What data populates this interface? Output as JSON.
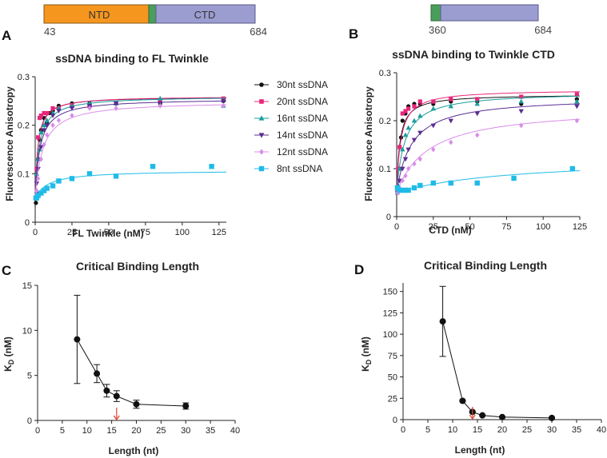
{
  "panel_labels": {
    "A": "A",
    "B": "B",
    "C": "C",
    "D": "D"
  },
  "domain_bars": {
    "left": {
      "ntd_label": "NTD",
      "ctd_label": "CTD",
      "start": "43",
      "end": "684"
    },
    "right": {
      "start": "360",
      "end": "684"
    }
  },
  "colors": {
    "ntd": "#f5961f",
    "linker": "#4a9e5c",
    "ctd": "#9b9cd0",
    "series": {
      "30nt ssDNA": "#111111",
      "20nt ssDNA": "#e8267a",
      "16nt ssDNA": "#1a9c9c",
      "14nt ssDNA": "#5a2d91",
      "12nt ssDNA": "#d98ce8",
      "8nt ssDNA": "#1fbbe8"
    },
    "arrow": "#e0442f"
  },
  "chart_data": [
    {
      "id": "A",
      "type": "scatter",
      "title": "ssDNA binding to FL Twinkle",
      "xlabel": "FL Twinkle (nM)",
      "ylabel": "Fluorescence Anisotropy",
      "xlim": [
        0,
        130
      ],
      "ylim": [
        0,
        0.3
      ],
      "xticks": [
        0,
        25,
        50,
        75,
        100,
        125
      ],
      "yticks": [
        0,
        0.1,
        0.2,
        0.3
      ],
      "ytick_labels": [
        "0",
        "0.1",
        "0.2",
        "0.3"
      ],
      "legend": "top-right",
      "series": [
        {
          "name": "30nt ssDNA",
          "marker": "circle",
          "base": 0.03,
          "bmax": 0.229,
          "kd": 1.6,
          "points": [
            [
              0.5,
              0.04
            ],
            [
              1,
              0.06
            ],
            [
              2,
              0.13
            ],
            [
              3,
              0.17
            ],
            [
              4,
              0.19
            ],
            [
              6,
              0.215
            ],
            [
              8,
              0.205
            ],
            [
              10,
              0.225
            ],
            [
              12,
              0.23
            ],
            [
              16,
              0.24
            ],
            [
              25,
              0.245
            ],
            [
              37,
              0.245
            ],
            [
              55,
              0.245
            ],
            [
              85,
              0.245
            ],
            [
              128,
              0.25
            ]
          ]
        },
        {
          "name": "20nt ssDNA",
          "marker": "square",
          "base": 0.05,
          "bmax": 0.21,
          "kd": 1.9,
          "points": [
            [
              0.5,
              0.05
            ],
            [
              1,
              0.11
            ],
            [
              2,
              0.175
            ],
            [
              3,
              0.215
            ],
            [
              4,
              0.22
            ],
            [
              6,
              0.225
            ],
            [
              8,
              0.225
            ],
            [
              12,
              0.235
            ],
            [
              16,
              0.235
            ],
            [
              25,
              0.24
            ],
            [
              37,
              0.24
            ],
            [
              55,
              0.245
            ],
            [
              85,
              0.25
            ],
            [
              128,
              0.255
            ]
          ]
        },
        {
          "name": "16nt ssDNA",
          "marker": "triangle-up",
          "base": 0.05,
          "bmax": 0.21,
          "kd": 2.8,
          "points": [
            [
              0.5,
              0.05
            ],
            [
              1,
              0.1
            ],
            [
              2,
              0.13
            ],
            [
              3,
              0.15
            ],
            [
              4,
              0.185
            ],
            [
              6,
              0.2
            ],
            [
              8,
              0.21
            ],
            [
              12,
              0.225
            ],
            [
              16,
              0.235
            ],
            [
              25,
              0.24
            ],
            [
              37,
              0.245
            ],
            [
              55,
              0.245
            ],
            [
              85,
              0.255
            ],
            [
              128,
              0.24
            ]
          ]
        },
        {
          "name": "14nt ssDNA",
          "marker": "triangle-down",
          "base": 0.05,
          "bmax": 0.205,
          "kd": 3.3,
          "points": [
            [
              0.5,
              0.05
            ],
            [
              1,
              0.08
            ],
            [
              2,
              0.11
            ],
            [
              4,
              0.155
            ],
            [
              6,
              0.19
            ],
            [
              8,
              0.2
            ],
            [
              12,
              0.22
            ],
            [
              16,
              0.23
            ],
            [
              25,
              0.235
            ],
            [
              37,
              0.24
            ],
            [
              55,
              0.245
            ],
            [
              85,
              0.245
            ],
            [
              128,
              0.25
            ]
          ]
        },
        {
          "name": "12nt ssDNA",
          "marker": "diamond",
          "base": 0.05,
          "bmax": 0.2,
          "kd": 5.2,
          "points": [
            [
              0.5,
              0.05
            ],
            [
              1,
              0.065
            ],
            [
              2,
              0.09
            ],
            [
              4,
              0.13
            ],
            [
              6,
              0.16
            ],
            [
              8,
              0.18
            ],
            [
              12,
              0.2
            ],
            [
              16,
              0.21
            ],
            [
              25,
              0.22
            ],
            [
              37,
              0.235
            ],
            [
              55,
              0.235
            ],
            [
              85,
              0.24
            ],
            [
              128,
              0.24
            ]
          ]
        },
        {
          "name": "8nt ssDNA",
          "marker": "square",
          "base": 0.05,
          "bmax": 0.057,
          "kd": 9,
          "points": [
            [
              0.5,
              0.05
            ],
            [
              1,
              0.05
            ],
            [
              2,
              0.055
            ],
            [
              4,
              0.06
            ],
            [
              6,
              0.065
            ],
            [
              8,
              0.07
            ],
            [
              12,
              0.075
            ],
            [
              16,
              0.085
            ],
            [
              25,
              0.09
            ],
            [
              37,
              0.1
            ],
            [
              55,
              0.095
            ],
            [
              80,
              0.115
            ],
            [
              120,
              0.115
            ]
          ]
        }
      ]
    },
    {
      "id": "B",
      "type": "scatter",
      "title": "ssDNA binding to Twinkle CTD",
      "xlabel": "CTD (nM)",
      "ylabel": "Fluorescence Anisotropy",
      "xlim": [
        0,
        125
      ],
      "ylim": [
        0,
        0.3
      ],
      "xticks": [
        0,
        25,
        50,
        75,
        100,
        125
      ],
      "yticks": [
        0,
        0.1,
        0.2,
        0.3
      ],
      "ytick_labels": [
        "0",
        "0.1",
        "0.2",
        "0.3"
      ],
      "series": [
        {
          "name": "30nt ssDNA",
          "marker": "circle",
          "base": 0.05,
          "bmax": 0.205,
          "kd": 2.2,
          "points": [
            [
              0.5,
              0.05
            ],
            [
              1,
              0.06
            ],
            [
              2,
              0.1
            ],
            [
              3,
              0.165
            ],
            [
              4,
              0.2
            ],
            [
              6,
              0.215
            ],
            [
              8,
              0.23
            ],
            [
              12,
              0.235
            ],
            [
              16,
              0.235
            ],
            [
              25,
              0.235
            ],
            [
              37,
              0.24
            ],
            [
              55,
              0.24
            ],
            [
              85,
              0.235
            ],
            [
              123,
              0.245
            ]
          ]
        },
        {
          "name": "20nt ssDNA",
          "marker": "square",
          "base": 0.05,
          "bmax": 0.215,
          "kd": 2.8,
          "points": [
            [
              0.5,
              0.06
            ],
            [
              1,
              0.1
            ],
            [
              2,
              0.145
            ],
            [
              4,
              0.215
            ],
            [
              6,
              0.22
            ],
            [
              8,
              0.225
            ],
            [
              12,
              0.23
            ],
            [
              16,
              0.24
            ],
            [
              25,
              0.24
            ],
            [
              37,
              0.245
            ],
            [
              55,
              0.245
            ],
            [
              85,
              0.25
            ],
            [
              123,
              0.255
            ]
          ]
        },
        {
          "name": "16nt ssDNA",
          "marker": "triangle-up",
          "base": 0.05,
          "bmax": 0.21,
          "kd": 5.5,
          "points": [
            [
              0.5,
              0.05
            ],
            [
              1,
              0.065
            ],
            [
              2,
              0.1
            ],
            [
              4,
              0.14
            ],
            [
              6,
              0.17
            ],
            [
              8,
              0.185
            ],
            [
              12,
              0.2
            ],
            [
              16,
              0.21
            ],
            [
              25,
              0.225
            ],
            [
              37,
              0.23
            ],
            [
              55,
              0.235
            ],
            [
              85,
              0.24
            ],
            [
              123,
              0.24
            ]
          ]
        },
        {
          "name": "14nt ssDNA",
          "marker": "triangle-down",
          "base": 0.05,
          "bmax": 0.2,
          "kd": 10,
          "points": [
            [
              0.5,
              0.05
            ],
            [
              1,
              0.06
            ],
            [
              2,
              0.075
            ],
            [
              4,
              0.1
            ],
            [
              6,
              0.12
            ],
            [
              8,
              0.14
            ],
            [
              12,
              0.16
            ],
            [
              16,
              0.175
            ],
            [
              25,
              0.19
            ],
            [
              37,
              0.2
            ],
            [
              55,
              0.215
            ],
            [
              85,
              0.22
            ],
            [
              123,
              0.23
            ]
          ]
        },
        {
          "name": "12nt ssDNA",
          "marker": "diamond",
          "base": 0.05,
          "bmax": 0.18,
          "kd": 22,
          "points": [
            [
              0.5,
              0.05
            ],
            [
              1,
              0.05
            ],
            [
              2,
              0.06
            ],
            [
              4,
              0.075
            ],
            [
              6,
              0.085
            ],
            [
              8,
              0.1
            ],
            [
              12,
              0.11
            ],
            [
              16,
              0.12
            ],
            [
              25,
              0.14
            ],
            [
              37,
              0.155
            ],
            [
              55,
              0.17
            ],
            [
              85,
              0.19
            ],
            [
              123,
              0.2
            ]
          ]
        },
        {
          "name": "8nt ssDNA",
          "marker": "square",
          "base": 0.05,
          "bmax": 0.075,
          "kd": 80,
          "points": [
            [
              0.5,
              0.06
            ],
            [
              2,
              0.055
            ],
            [
              4,
              0.055
            ],
            [
              6,
              0.055
            ],
            [
              8,
              0.055
            ],
            [
              12,
              0.06
            ],
            [
              16,
              0.065
            ],
            [
              25,
              0.07
            ],
            [
              37,
              0.07
            ],
            [
              55,
              0.07
            ],
            [
              80,
              0.08
            ],
            [
              120,
              0.1
            ]
          ]
        }
      ]
    },
    {
      "id": "C",
      "type": "line",
      "title": "Critical Binding Length",
      "xlabel": "Length (nt)",
      "ylabel_main": "K",
      "ylabel_sub": "D",
      "ylabel_rest": " (nM)",
      "xlim": [
        0,
        40
      ],
      "ylim": [
        0,
        15
      ],
      "xticks": [
        0,
        5,
        10,
        15,
        20,
        25,
        30,
        35,
        40
      ],
      "yticks": [
        0,
        5,
        10,
        15
      ],
      "x": [
        8,
        12,
        14,
        16,
        20,
        30
      ],
      "y": [
        9.0,
        5.2,
        3.3,
        2.7,
        1.8,
        1.6
      ],
      "err": [
        4.9,
        1.0,
        0.7,
        0.6,
        0.45,
        0.35
      ],
      "arrow_x": 16
    },
    {
      "id": "D",
      "type": "line",
      "title": "Critical Binding Length",
      "xlabel": "Length (nt)",
      "ylabel_main": "K",
      "ylabel_sub": "D",
      "ylabel_rest": " (nM)",
      "xlim": [
        0,
        40
      ],
      "ylim": [
        0,
        160
      ],
      "xticks": [
        0,
        5,
        10,
        15,
        20,
        25,
        30,
        35,
        40
      ],
      "yticks": [
        0,
        25,
        50,
        75,
        100,
        125,
        150
      ],
      "x": [
        8,
        12,
        14,
        16,
        20,
        30
      ],
      "y": [
        115,
        22,
        9,
        5,
        3,
        2
      ],
      "err": [
        41,
        1,
        1,
        0.8,
        0.5,
        0.5
      ],
      "arrow_x": 14
    }
  ]
}
